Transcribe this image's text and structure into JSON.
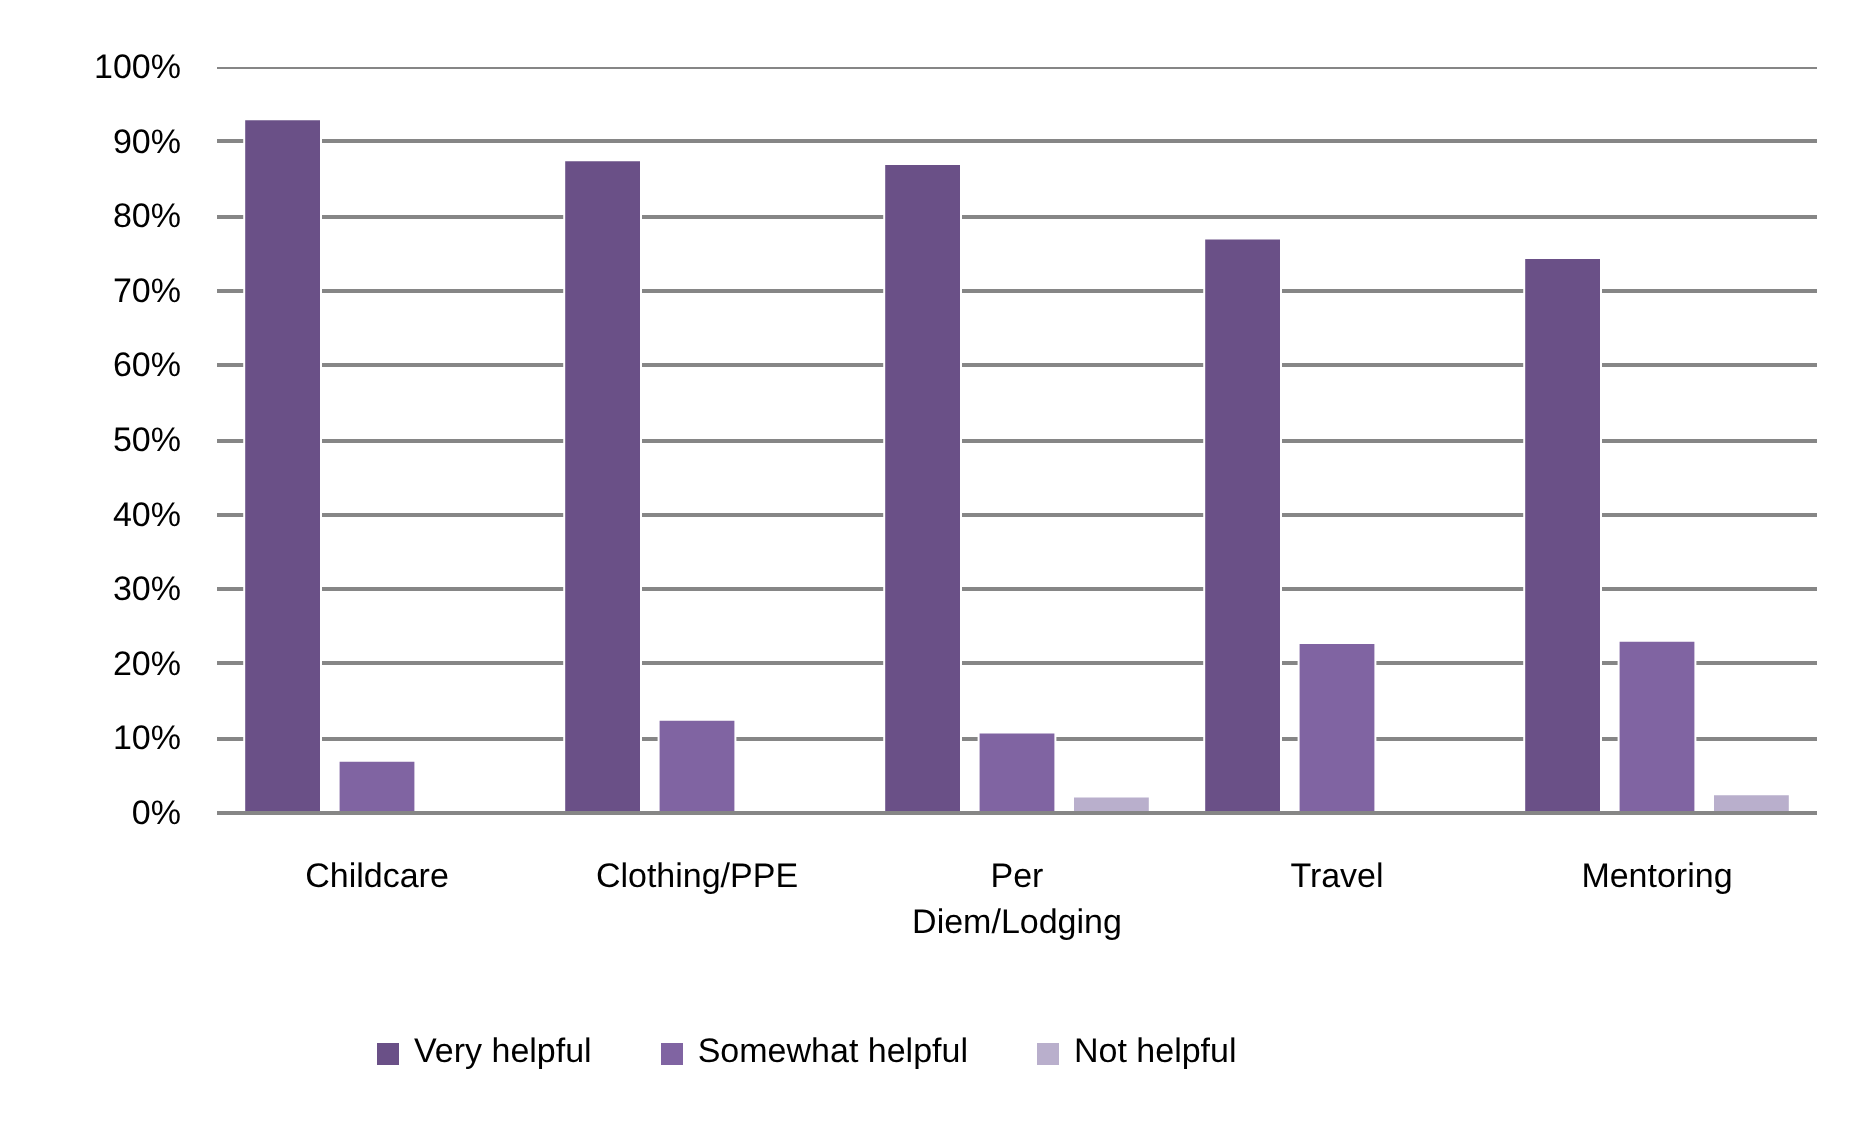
{
  "chart_data": {
    "type": "bar",
    "categories": [
      "Childcare",
      "Clothing/PPE",
      "Per Diem/Lodging",
      "Travel",
      "Mentoring"
    ],
    "series": [
      {
        "name": "Very helpful",
        "color": "#6a5087",
        "values": [
          93,
          87.5,
          87,
          77,
          74.4
        ]
      },
      {
        "name": "Somewhat helpful",
        "color": "#8064a2",
        "values": [
          7,
          12.5,
          10.8,
          22.8,
          23.1
        ]
      },
      {
        "name": "Not helpful",
        "color": "#b9afcc",
        "values": [
          null,
          null,
          2.2,
          null,
          2.5
        ]
      }
    ],
    "ylim": [
      0,
      100
    ],
    "yticks": [
      {
        "value": 0,
        "label": "0%"
      },
      {
        "value": 10,
        "label": "10%"
      },
      {
        "value": 20,
        "label": "20%"
      },
      {
        "value": 30,
        "label": "30%"
      },
      {
        "value": 40,
        "label": "40%"
      },
      {
        "value": 50,
        "label": "50%"
      },
      {
        "value": 60,
        "label": "60%"
      },
      {
        "value": 70,
        "label": "70%"
      },
      {
        "value": 80,
        "label": "80%"
      },
      {
        "value": 90,
        "label": "90%"
      },
      {
        "value": 100,
        "label": "100%"
      }
    ],
    "grid": "y",
    "legend": "bottom"
  }
}
